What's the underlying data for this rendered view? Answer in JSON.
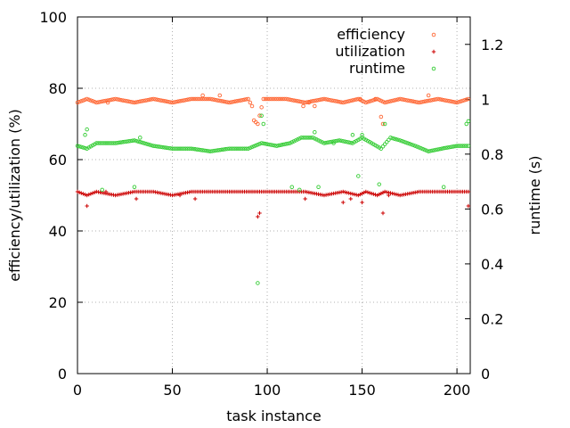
{
  "chart_data": {
    "type": "scatter",
    "xlabel": "task instance",
    "ylabel": "efficiency/utilization (%)",
    "y2label": "runtime (s)",
    "xlim": [
      0,
      207
    ],
    "ylim": [
      0,
      100
    ],
    "y2lim": [
      0,
      1.3
    ],
    "xticks": [
      0,
      50,
      100,
      150,
      200
    ],
    "yticks": [
      0,
      20,
      40,
      60,
      80,
      100
    ],
    "y2ticks": [
      0,
      0.2,
      0.4,
      0.6,
      0.8,
      1,
      1.2
    ],
    "grid": true,
    "legend_position": "top-right",
    "series": [
      {
        "name": "efficiency",
        "axis": "y",
        "color": "#ff6633",
        "marker": "circle",
        "segments": [
          [
            0,
            76
          ],
          [
            5,
            77
          ],
          [
            10,
            76
          ],
          [
            20,
            77
          ],
          [
            30,
            76
          ],
          [
            40,
            77
          ],
          [
            50,
            76
          ],
          [
            60,
            77
          ],
          [
            70,
            77
          ],
          [
            80,
            76
          ],
          [
            90,
            77
          ],
          [
            92,
            75
          ],
          [
            93,
            71
          ],
          [
            95,
            70
          ],
          [
            98,
            77
          ],
          [
            110,
            77
          ],
          [
            120,
            76
          ],
          [
            130,
            77
          ],
          [
            140,
            76
          ],
          [
            148,
            77
          ],
          [
            152,
            76
          ],
          [
            158,
            77
          ],
          [
            162,
            76
          ],
          [
            170,
            77
          ],
          [
            180,
            76
          ],
          [
            190,
            77
          ],
          [
            200,
            76
          ],
          [
            206,
            77
          ]
        ],
        "extras": [
          [
            16,
            76
          ],
          [
            66,
            78
          ],
          [
            75,
            78
          ],
          [
            119,
            75
          ],
          [
            122,
            76
          ],
          [
            125,
            75
          ],
          [
            149,
            77
          ],
          [
            157,
            77
          ],
          [
            160,
            72
          ],
          [
            161,
            70
          ],
          [
            185,
            78
          ]
        ]
      },
      {
        "name": "utilization",
        "axis": "y",
        "color": "#cc0000",
        "marker": "plus",
        "segments": [
          [
            0,
            51
          ],
          [
            5,
            50
          ],
          [
            10,
            51
          ],
          [
            20,
            50
          ],
          [
            30,
            51
          ],
          [
            40,
            51
          ],
          [
            50,
            50
          ],
          [
            60,
            51
          ],
          [
            70,
            51
          ],
          [
            80,
            51
          ],
          [
            90,
            51
          ],
          [
            94,
            51
          ],
          [
            98,
            51
          ],
          [
            110,
            51
          ],
          [
            120,
            51
          ],
          [
            130,
            50
          ],
          [
            140,
            51
          ],
          [
            148,
            50
          ],
          [
            152,
            51
          ],
          [
            158,
            50
          ],
          [
            162,
            51
          ],
          [
            170,
            50
          ],
          [
            180,
            51
          ],
          [
            190,
            51
          ],
          [
            200,
            51
          ],
          [
            206,
            51
          ]
        ],
        "extras": [
          [
            5,
            47
          ],
          [
            15,
            51
          ],
          [
            31,
            49
          ],
          [
            54,
            50
          ],
          [
            62,
            49
          ],
          [
            95,
            44
          ],
          [
            96,
            45
          ],
          [
            120,
            49
          ],
          [
            140,
            48
          ],
          [
            144,
            49
          ],
          [
            150,
            48
          ],
          [
            161,
            45
          ],
          [
            164,
            50
          ],
          [
            206,
            47
          ]
        ]
      },
      {
        "name": "runtime",
        "axis": "y2",
        "color": "#33cc33",
        "marker": "circle",
        "segments": [
          [
            0,
            0.83
          ],
          [
            5,
            0.82
          ],
          [
            10,
            0.84
          ],
          [
            20,
            0.84
          ],
          [
            30,
            0.85
          ],
          [
            40,
            0.83
          ],
          [
            50,
            0.82
          ],
          [
            60,
            0.82
          ],
          [
            70,
            0.81
          ],
          [
            80,
            0.82
          ],
          [
            90,
            0.82
          ],
          [
            97,
            0.84
          ],
          [
            105,
            0.83
          ],
          [
            112,
            0.84
          ],
          [
            118,
            0.86
          ],
          [
            124,
            0.86
          ],
          [
            130,
            0.84
          ],
          [
            138,
            0.85
          ],
          [
            145,
            0.84
          ],
          [
            150,
            0.86
          ],
          [
            155,
            0.84
          ],
          [
            160,
            0.82
          ],
          [
            165,
            0.86
          ],
          [
            170,
            0.85
          ],
          [
            178,
            0.83
          ],
          [
            185,
            0.81
          ],
          [
            192,
            0.82
          ],
          [
            200,
            0.83
          ],
          [
            206,
            0.83
          ]
        ],
        "extras": [
          [
            4,
            0.87
          ],
          [
            5,
            0.89
          ],
          [
            13,
            0.67
          ],
          [
            30,
            0.68
          ],
          [
            33,
            0.86
          ],
          [
            95,
            0.33
          ],
          [
            97,
            0.94
          ],
          [
            98,
            0.91
          ],
          [
            113,
            0.68
          ],
          [
            117,
            0.67
          ],
          [
            125,
            0.88
          ],
          [
            127,
            0.68
          ],
          [
            135,
            0.84
          ],
          [
            145,
            0.87
          ],
          [
            148,
            0.72
          ],
          [
            150,
            0.87
          ],
          [
            159,
            0.69
          ],
          [
            162,
            0.91
          ],
          [
            193,
            0.68
          ],
          [
            205,
            0.91
          ],
          [
            206,
            0.92
          ]
        ]
      }
    ]
  }
}
